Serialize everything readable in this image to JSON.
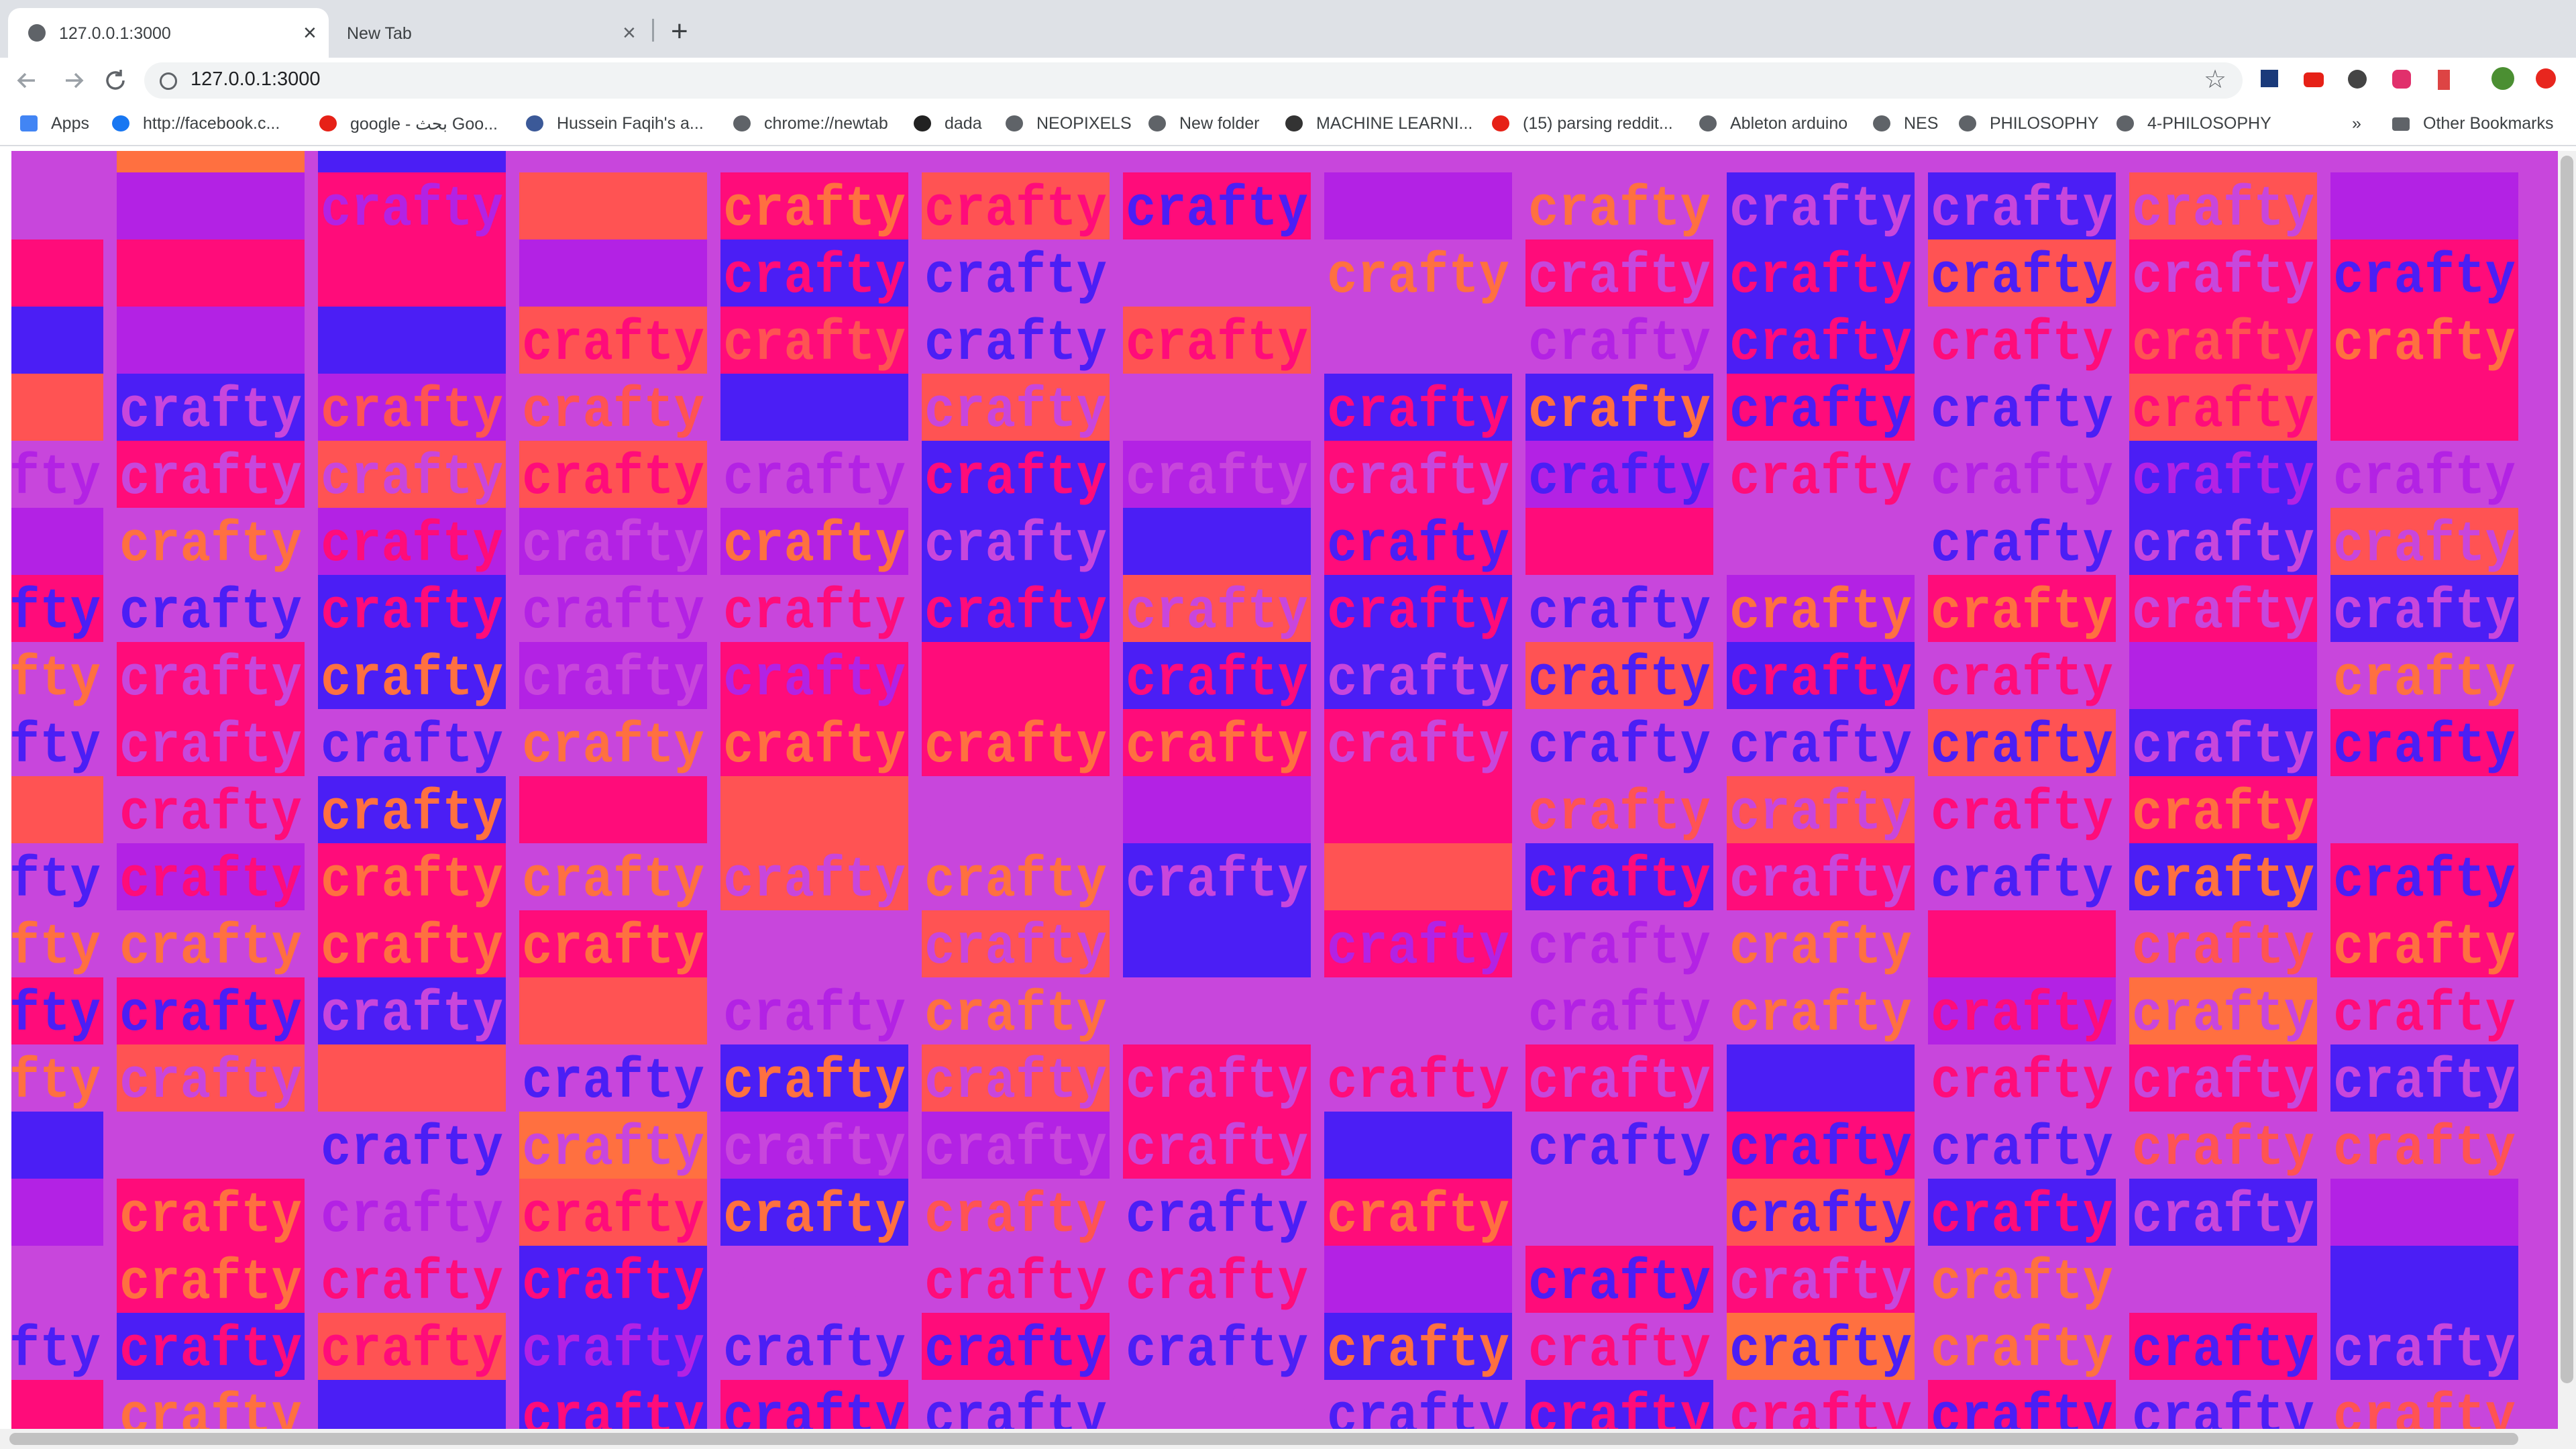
{
  "tabs": [
    {
      "title": "127.0.0.1:3000"
    },
    {
      "title": "New Tab"
    }
  ],
  "address": "127.0.0.1:3000",
  "bookmarks": [
    "Apps",
    "http://facebook.c...",
    "google - بحث Goo...",
    "Hussein Faqih's a...",
    "chrome://newtab",
    "dada",
    "NEOPIXELS",
    "New folder",
    "MACHINE LEARNI...",
    "(15) parsing reddit...",
    "Ableton arduino",
    "NES",
    "PHILOSOPHY",
    "4-PHILOSOPHY"
  ],
  "overflow": "»",
  "other_bookmarks": "Other Bookmarks",
  "grid": {
    "word": "crafty",
    "palette": {
      "P": "#c846dc",
      "K": "#ff0c7a",
      "B": "#4b1ef5",
      "R": "#ff5353",
      "V": "#b322e4",
      "O": "#ff7040"
    },
    "rows": [
      [
        "P-",
        "O-",
        "B-",
        "P-",
        "P-",
        "P-",
        "P-",
        "P-",
        "P-",
        "P-",
        "P-",
        "P-",
        "P-"
      ],
      [
        "P-",
        "V-",
        "KV",
        "R-",
        "KO",
        "RK",
        "KB",
        "V-",
        "PO",
        "BP",
        "BP",
        "RP",
        "V-"
      ],
      [
        "K-",
        "K-",
        "K-",
        "V-",
        "BK",
        "PB",
        "P-",
        "PO",
        "KP",
        "BK",
        "RB",
        "KP",
        "KB"
      ],
      [
        "B-",
        "V-",
        "B-",
        "RK",
        "KR",
        "PB",
        "RK",
        "P-",
        "PV",
        "BK",
        "PK",
        "KR",
        "KO"
      ],
      [
        "R-",
        "BP",
        "VR",
        "PR",
        "B-",
        "RP",
        "P-",
        "BK",
        "BO",
        "KB",
        "PB",
        "RK",
        "K-"
      ],
      [
        "PV",
        "KP",
        "RP",
        "RK",
        "PV",
        "BK",
        "VP",
        "KP",
        "VB",
        "PK",
        "PV",
        "BV",
        "PV"
      ],
      [
        "V-",
        "PO",
        "VK",
        "VP",
        "VO",
        "BP",
        "B-",
        "KB",
        "K-",
        "P-",
        "PB",
        "BP",
        "RP"
      ],
      [
        "KB",
        "PB",
        "BK",
        "PV",
        "PK",
        "BK",
        "RP",
        "BK",
        "PB",
        "VO",
        "KO",
        "KP",
        "BP"
      ],
      [
        "PO",
        "KP",
        "BO",
        "VP",
        "KV",
        "K-",
        "BK",
        "BP",
        "RB",
        "BK",
        "PK",
        "V-",
        "PO"
      ],
      [
        "PB",
        "KP",
        "PB",
        "PO",
        "KO",
        "KO",
        "KO",
        "KP",
        "PB",
        "PB",
        "RB",
        "BP",
        "KB"
      ],
      [
        "R-",
        "PK",
        "BO",
        "K-",
        "R-",
        "PP",
        "V-",
        "K-",
        "PR",
        "RP",
        "PK",
        "KO",
        "P-"
      ],
      [
        "PB",
        "VK",
        "KO",
        "PO",
        "RP",
        "PO",
        "BP",
        "R-",
        "BK",
        "KP",
        "PB",
        "BO",
        "KB"
      ],
      [
        "PO",
        "PO",
        "KO",
        "KO",
        "P-",
        "RP",
        "B-",
        "KV",
        "PV",
        "PO",
        "K-",
        "PR",
        "KO"
      ],
      [
        "KB",
        "KB",
        "BP",
        "R-",
        "PV",
        "PO",
        "P-",
        "P-",
        "PV",
        "PO",
        "VK",
        "OP",
        "PK"
      ],
      [
        "PO",
        "RP",
        "R-",
        "PB",
        "BO",
        "RP",
        "KP",
        "PK",
        "KP",
        "B-",
        "PK",
        "KP",
        "BP"
      ],
      [
        "B-",
        "P-",
        "PB",
        "OP",
        "VP",
        "VP",
        "KP",
        "B-",
        "PB",
        "KB",
        "PB",
        "PR",
        "PR"
      ],
      [
        "V-",
        "KO",
        "PV",
        "RK",
        "BO",
        "PR",
        "PB",
        "KO",
        "P-",
        "RB",
        "BK",
        "BP",
        "V-"
      ],
      [
        "P-",
        "KO",
        "PK",
        "BK",
        "PP",
        "PK",
        "PK",
        "V-",
        "KB",
        "KP",
        "PO",
        "P-",
        "B-"
      ],
      [
        "PB",
        "BK",
        "RK",
        "BV",
        "PB",
        "KB",
        "PB",
        "BO",
        "PK",
        "OB",
        "PO",
        "KB",
        "BP"
      ],
      [
        "K-",
        "PO",
        "B-",
        "BK",
        "KB",
        "PB",
        "PP",
        "PB",
        "BK",
        "PK",
        "KB",
        "PB",
        "PR"
      ]
    ]
  }
}
